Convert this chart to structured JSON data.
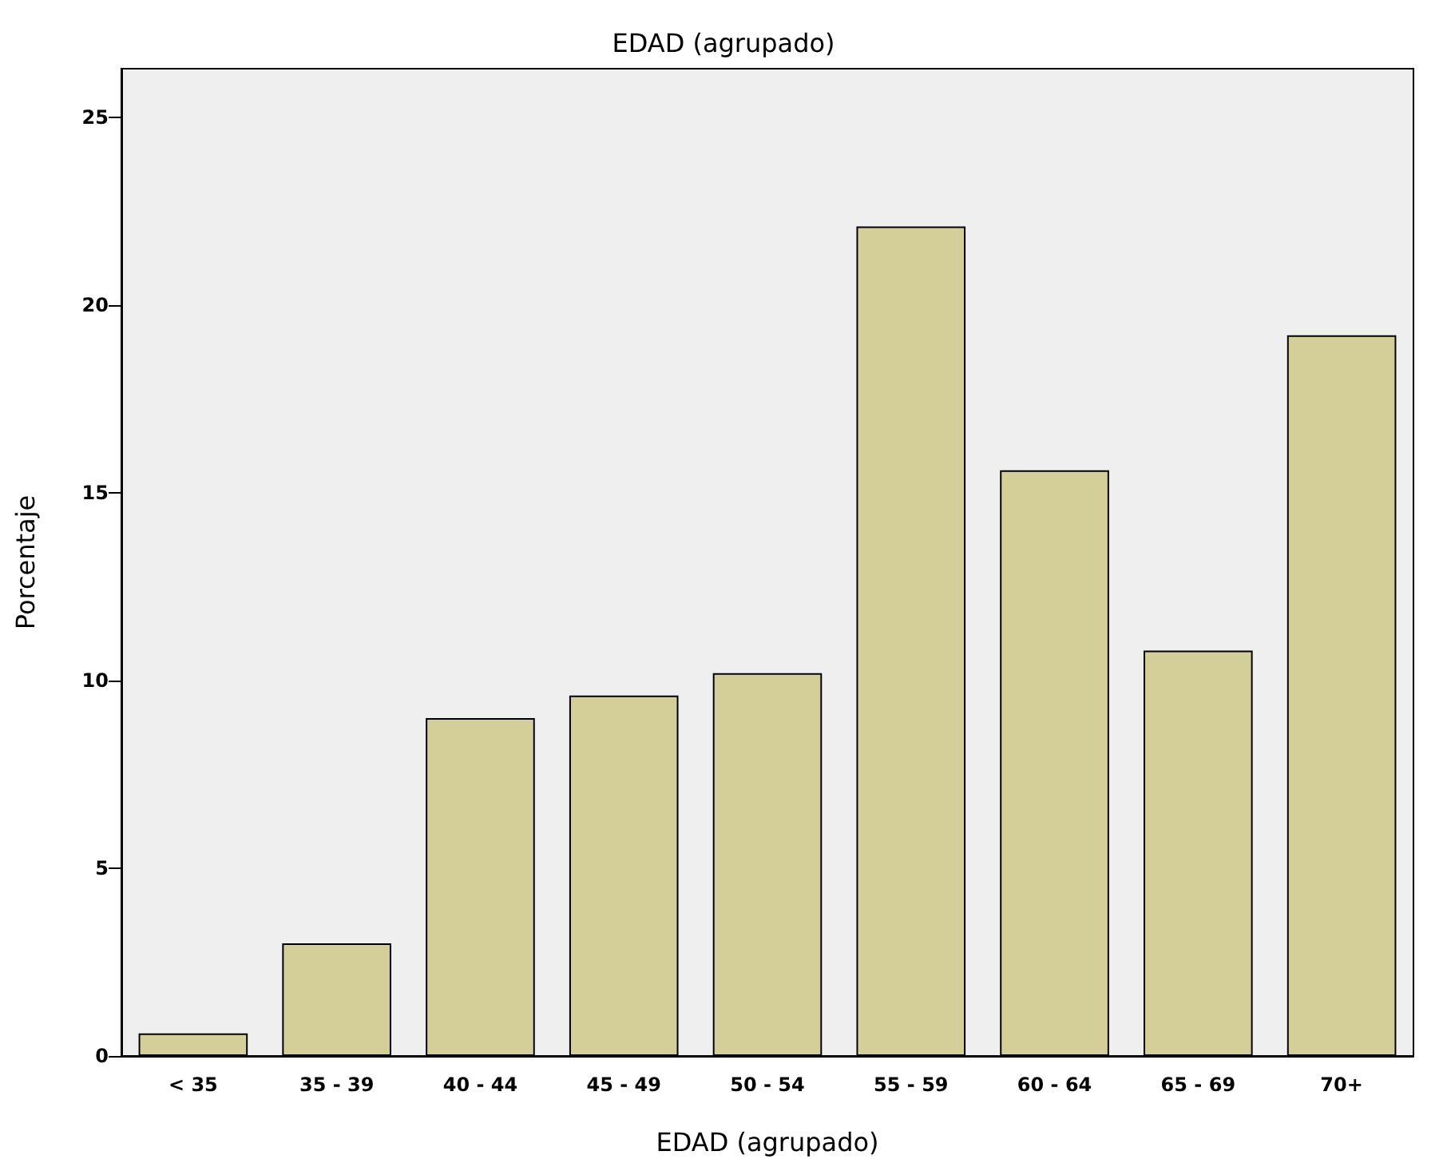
{
  "chart_data": {
    "type": "bar",
    "title": "EDAD (agrupado)",
    "xlabel": "EDAD (agrupado)",
    "ylabel": "Porcentaje",
    "categories": [
      "< 35",
      "35 - 39",
      "40 - 44",
      "45 - 49",
      "50 - 54",
      "55 - 59",
      "60 - 64",
      "65 - 69",
      "70+"
    ],
    "values": [
      0.6,
      3.0,
      9.0,
      9.6,
      10.2,
      22.1,
      15.6,
      10.8,
      19.2
    ],
    "color": "#d4cf98",
    "ylim": [
      0,
      26.3
    ],
    "yticks": [
      0,
      5,
      10,
      15,
      20,
      25
    ],
    "grid": false
  }
}
